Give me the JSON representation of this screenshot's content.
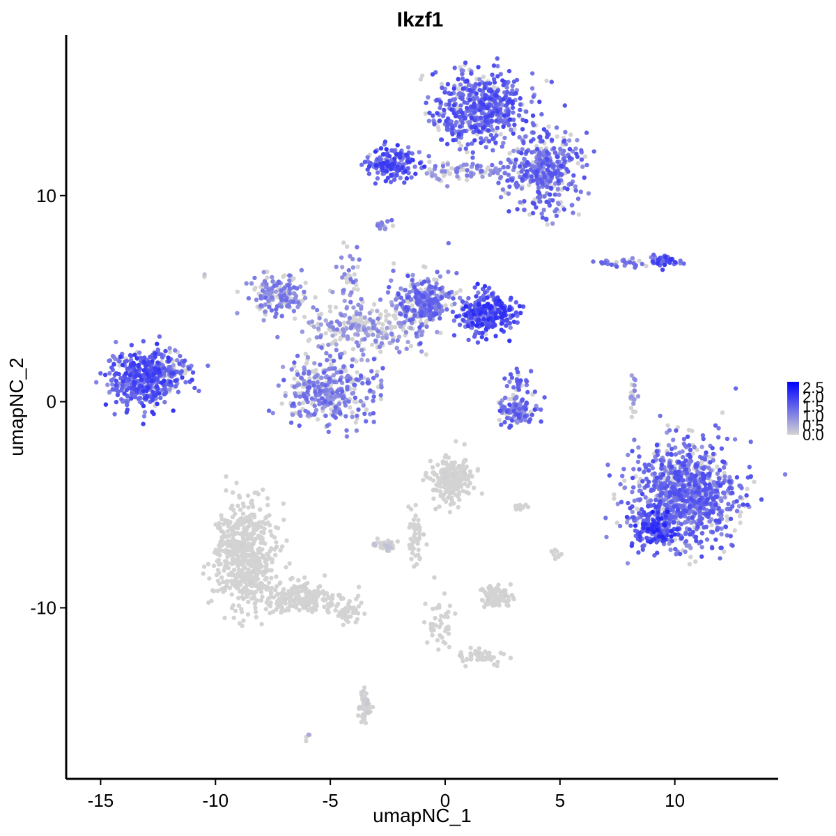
{
  "chart_data": {
    "type": "scatter",
    "title": "Ikzf1",
    "xlabel": "umapNC_1",
    "ylabel": "umapNC_2",
    "xlim": [
      -16.5,
      14.5
    ],
    "ylim": [
      -18.3,
      17.8
    ],
    "x_ticks": [
      -15,
      -10,
      -5,
      0,
      5,
      10
    ],
    "y_ticks": [
      -10,
      0,
      10
    ],
    "grid": false,
    "legend": {
      "position": "right",
      "type": "colorbar",
      "ticks": [
        "2.5",
        "2.0",
        "1.5",
        "1.0",
        "0.5",
        "0.0"
      ],
      "range": [
        0,
        2.5
      ]
    },
    "color_scale": {
      "low": "#d3d3d3",
      "high": "#0000ff"
    },
    "clusters": [
      {
        "x": 1.5,
        "y": 14.2,
        "sx": 1.3,
        "sy": 1.2,
        "n": 520,
        "expr": 1.4
      },
      {
        "x": 4.3,
        "y": 11.2,
        "sx": 1.0,
        "sy": 1.3,
        "n": 380,
        "expr": 1.3
      },
      {
        "x": -2.4,
        "y": 11.5,
        "sx": 0.7,
        "sy": 0.5,
        "n": 170,
        "expr": 1.5
      },
      {
        "x": 0.5,
        "y": 11.2,
        "sx": 1.6,
        "sy": 0.3,
        "n": 90,
        "expr": 1.0
      },
      {
        "x": -2.7,
        "y": 8.6,
        "sx": 0.2,
        "sy": 0.2,
        "n": 15,
        "expr": 1.2
      },
      {
        "x": -13.2,
        "y": 1.2,
        "sx": 1.0,
        "sy": 0.9,
        "n": 420,
        "expr": 1.5
      },
      {
        "x": -11.8,
        "y": 1.6,
        "sx": 0.5,
        "sy": 0.6,
        "n": 60,
        "expr": 1.2
      },
      {
        "x": -7.2,
        "y": 5.2,
        "sx": 0.8,
        "sy": 0.7,
        "n": 170,
        "expr": 1.0
      },
      {
        "x": -5.0,
        "y": 0.5,
        "sx": 1.3,
        "sy": 1.1,
        "n": 330,
        "expr": 1.1
      },
      {
        "x": -1.0,
        "y": 4.8,
        "sx": 0.8,
        "sy": 0.9,
        "n": 280,
        "expr": 1.2
      },
      {
        "x": 1.8,
        "y": 4.3,
        "sx": 0.8,
        "sy": 0.7,
        "n": 260,
        "expr": 1.6
      },
      {
        "x": -3.5,
        "y": 3.5,
        "sx": 1.5,
        "sy": 0.8,
        "n": 240,
        "expr": 0.8
      },
      {
        "x": -4.2,
        "y": 5.8,
        "sx": 0.3,
        "sy": 1.3,
        "n": 40,
        "expr": 1.0
      },
      {
        "x": 3.2,
        "y": -0.3,
        "sx": 0.6,
        "sy": 0.5,
        "n": 110,
        "expr": 1.3
      },
      {
        "x": 3.2,
        "y": 1.1,
        "sx": 0.3,
        "sy": 0.5,
        "n": 30,
        "expr": 1.3
      },
      {
        "x": 9.5,
        "y": 6.8,
        "sx": 0.4,
        "sy": 0.2,
        "n": 50,
        "expr": 1.5
      },
      {
        "x": 7.8,
        "y": 6.7,
        "sx": 0.6,
        "sy": 0.15,
        "n": 30,
        "expr": 1.1
      },
      {
        "x": 8.2,
        "y": 0.3,
        "sx": 0.1,
        "sy": 0.7,
        "n": 25,
        "expr": 0.8
      },
      {
        "x": 10.5,
        "y": -4.5,
        "sx": 1.5,
        "sy": 1.6,
        "n": 950,
        "expr": 1.3
      },
      {
        "x": 9.0,
        "y": -6.2,
        "sx": 0.6,
        "sy": 0.6,
        "n": 130,
        "expr": 1.7
      },
      {
        "x": -8.7,
        "y": -7.5,
        "sx": 0.9,
        "sy": 1.7,
        "n": 550,
        "expr": 0.02
      },
      {
        "x": -6.2,
        "y": -9.5,
        "sx": 1.3,
        "sy": 0.5,
        "n": 220,
        "expr": 0.02
      },
      {
        "x": -4.2,
        "y": -10.2,
        "sx": 0.4,
        "sy": 0.3,
        "n": 40,
        "expr": 0.02
      },
      {
        "x": -3.5,
        "y": -14.8,
        "sx": 0.2,
        "sy": 0.5,
        "n": 45,
        "expr": 0.1
      },
      {
        "x": 0.3,
        "y": -3.8,
        "sx": 0.6,
        "sy": 0.7,
        "n": 210,
        "expr": 0.05
      },
      {
        "x": -1.3,
        "y": -6.5,
        "sx": 0.2,
        "sy": 1.0,
        "n": 45,
        "expr": 0.05
      },
      {
        "x": -2.5,
        "y": -7.0,
        "sx": 0.4,
        "sy": 0.2,
        "n": 35,
        "expr": 0.2
      },
      {
        "x": 2.3,
        "y": -9.5,
        "sx": 0.5,
        "sy": 0.35,
        "n": 90,
        "expr": 0.05
      },
      {
        "x": -0.3,
        "y": -10.8,
        "sx": 0.4,
        "sy": 0.8,
        "n": 45,
        "expr": 0.03
      },
      {
        "x": 1.5,
        "y": -12.3,
        "sx": 0.7,
        "sy": 0.3,
        "n": 45,
        "expr": 0.03
      },
      {
        "x": 4.9,
        "y": -7.4,
        "sx": 0.15,
        "sy": 0.15,
        "n": 10,
        "expr": 0.1
      },
      {
        "x": 3.3,
        "y": -5.1,
        "sx": 0.2,
        "sy": 0.1,
        "n": 12,
        "expr": 0.05
      },
      {
        "x": -6.0,
        "y": -16.3,
        "sx": 0.1,
        "sy": 0.1,
        "n": 5,
        "expr": 0.6
      },
      {
        "x": -10.5,
        "y": 6.1,
        "sx": 0.05,
        "sy": 0.05,
        "n": 2,
        "expr": 0.4
      }
    ]
  }
}
